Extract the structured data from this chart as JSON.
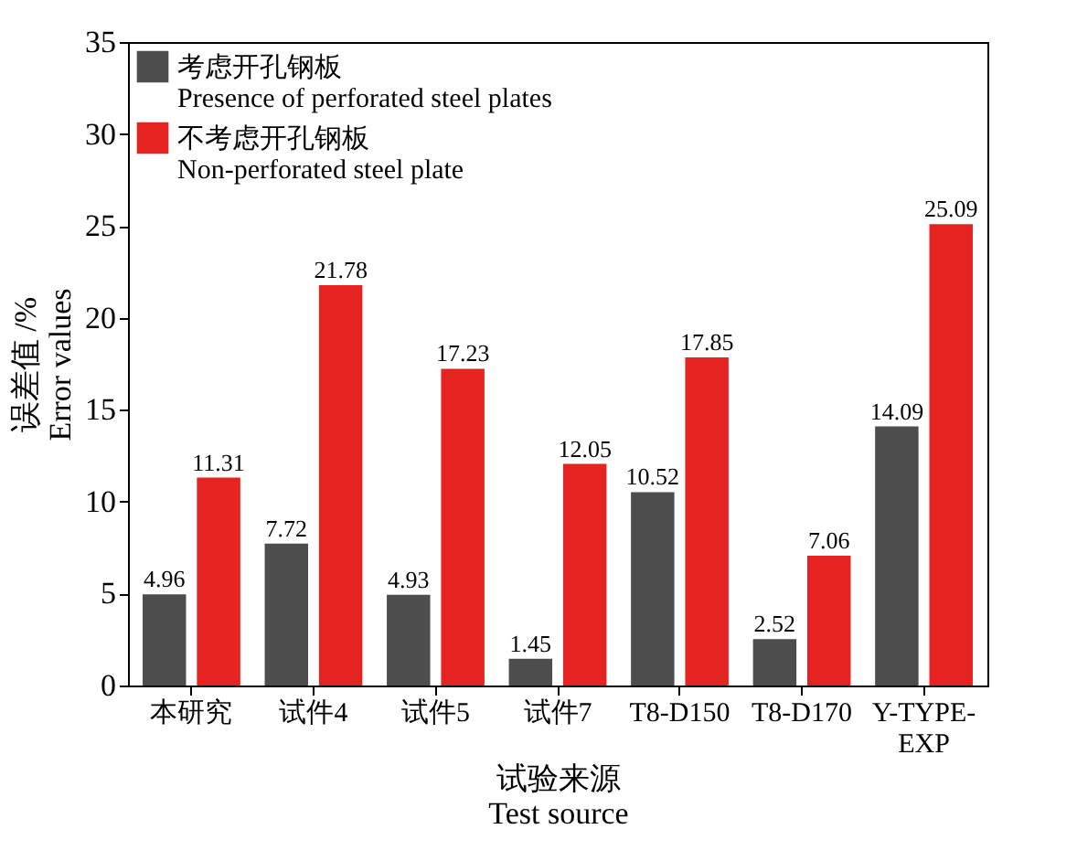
{
  "chart_data": {
    "type": "bar",
    "xlabel": "试验来源\nTest source",
    "ylabel": "误差值 /%\nError values",
    "categories": [
      "本研究",
      "试件4",
      "试件5",
      "试件7",
      "T8-D150",
      "T8-D170",
      "Y-TYPE-EXP"
    ],
    "series": [
      {
        "name": "考虑开孔钢板\nPresence of perforated steel plates",
        "color": "#4d4d4d",
        "values": [
          4.96,
          7.72,
          4.93,
          1.45,
          10.52,
          2.52,
          14.09
        ]
      },
      {
        "name": "不考虑开孔钢板\nNon-perforated steel plate",
        "color": "#e52421",
        "values": [
          11.31,
          21.78,
          17.23,
          12.05,
          17.85,
          7.06,
          25.09
        ]
      }
    ],
    "ylim": [
      0,
      35
    ],
    "yticks": [
      0,
      5,
      10,
      15,
      20,
      25,
      30,
      35
    ],
    "grid": false,
    "legend": "top left",
    "data_labels": true
  }
}
